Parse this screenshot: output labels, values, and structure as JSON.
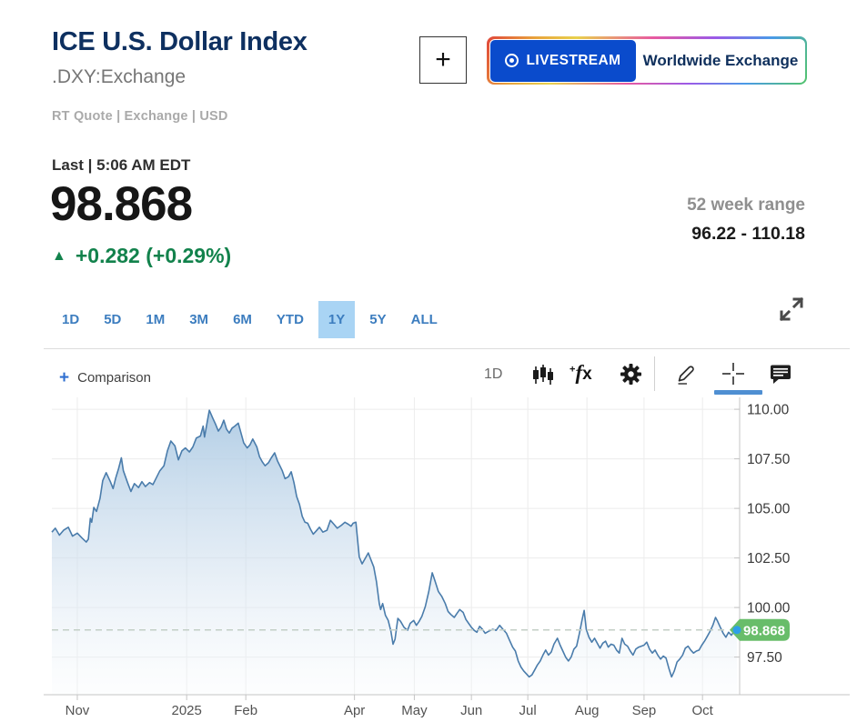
{
  "header": {
    "title": "ICE U.S. Dollar Index",
    "symbol": ".DXY:Exchange",
    "meta": "RT Quote | Exchange | USD",
    "add_button_label": "+",
    "livestream_label": "LIVESTREAM",
    "livestream_show": "Worldwide Exchange"
  },
  "quote": {
    "last_label": "Last | 5:06 AM EDT",
    "price": "98.868",
    "change_direction": "up",
    "change_arrow": "▲",
    "change_text": "+0.282 (+0.29%)",
    "range_label": "52 week range",
    "range_value": "96.22 - 110.18"
  },
  "ranges": {
    "items": [
      "1D",
      "5D",
      "1M",
      "3M",
      "6M",
      "YTD",
      "1Y",
      "5Y",
      "ALL"
    ],
    "selected": "1Y"
  },
  "chart_toolbar": {
    "comparison_label": "Comparison",
    "interval_label": "1D",
    "active_tool": "crosshair"
  },
  "colors": {
    "navy": "#0e3060",
    "green_change": "#12824c",
    "tab_text": "#3c7dbf",
    "tab_selected_bg": "#a9d4f4",
    "accent_blue": "#0a4bcc",
    "active_tool_underline": "#4f8fd2",
    "line_blue": "#4a7cab",
    "fill_top": "#aecbe4",
    "tag_green": "#68bd6a",
    "dot_blue": "#2d9fe8",
    "dashed_line": "#c3cfc6",
    "grid": "#ececec",
    "axis": "#c4c4c4"
  },
  "chart_data": {
    "type": "area",
    "title": "ICE U.S. Dollar Index, 1 year",
    "period": "1Y",
    "grid": true,
    "legend_position": "none",
    "ylim": [
      95.6,
      110.6
    ],
    "y_axis": {
      "ticks": [
        {
          "v": 110.0,
          "label": "110.00"
        },
        {
          "v": 107.5,
          "label": "107.50"
        },
        {
          "v": 105.0,
          "label": "105.00"
        },
        {
          "v": 102.5,
          "label": "102.50"
        },
        {
          "v": 100.0,
          "label": "100.00"
        },
        {
          "v": 97.5,
          "label": "97.50"
        }
      ]
    },
    "x_axis": {
      "ticks": [
        {
          "t": 0.037,
          "label": "Nov"
        },
        {
          "t": 0.196,
          "label": "2025"
        },
        {
          "t": 0.282,
          "label": "Feb"
        },
        {
          "t": 0.44,
          "label": "Apr"
        },
        {
          "t": 0.527,
          "label": "May"
        },
        {
          "t": 0.61,
          "label": "Jun"
        },
        {
          "t": 0.692,
          "label": "Jul"
        },
        {
          "t": 0.778,
          "label": "Aug"
        },
        {
          "t": 0.861,
          "label": "Sep"
        },
        {
          "t": 0.946,
          "label": "Oct"
        }
      ]
    },
    "last": {
      "value": 98.868,
      "label": "98.868"
    },
    "points": [
      [
        0.0,
        103.8
      ],
      [
        0.005,
        104.0
      ],
      [
        0.011,
        103.65
      ],
      [
        0.017,
        103.9
      ],
      [
        0.024,
        104.05
      ],
      [
        0.03,
        103.6
      ],
      [
        0.037,
        103.75
      ],
      [
        0.044,
        103.5
      ],
      [
        0.05,
        103.3
      ],
      [
        0.053,
        103.45
      ],
      [
        0.056,
        104.5
      ],
      [
        0.058,
        104.3
      ],
      [
        0.061,
        105.05
      ],
      [
        0.065,
        104.85
      ],
      [
        0.07,
        105.5
      ],
      [
        0.074,
        106.4
      ],
      [
        0.079,
        106.8
      ],
      [
        0.085,
        106.35
      ],
      [
        0.089,
        106.0
      ],
      [
        0.093,
        106.55
      ],
      [
        0.097,
        107.0
      ],
      [
        0.101,
        107.55
      ],
      [
        0.104,
        106.9
      ],
      [
        0.11,
        106.3
      ],
      [
        0.115,
        105.85
      ],
      [
        0.12,
        106.25
      ],
      [
        0.126,
        106.05
      ],
      [
        0.131,
        106.35
      ],
      [
        0.136,
        106.1
      ],
      [
        0.142,
        106.3
      ],
      [
        0.147,
        106.2
      ],
      [
        0.152,
        106.55
      ],
      [
        0.157,
        106.9
      ],
      [
        0.163,
        107.15
      ],
      [
        0.168,
        107.9
      ],
      [
        0.173,
        108.4
      ],
      [
        0.179,
        108.15
      ],
      [
        0.184,
        107.45
      ],
      [
        0.189,
        107.9
      ],
      [
        0.194,
        108.05
      ],
      [
        0.2,
        107.85
      ],
      [
        0.205,
        108.1
      ],
      [
        0.21,
        108.55
      ],
      [
        0.216,
        108.65
      ],
      [
        0.22,
        109.15
      ],
      [
        0.222,
        108.6
      ],
      [
        0.226,
        109.4
      ],
      [
        0.229,
        109.95
      ],
      [
        0.234,
        109.55
      ],
      [
        0.238,
        109.25
      ],
      [
        0.242,
        108.9
      ],
      [
        0.246,
        109.1
      ],
      [
        0.25,
        109.45
      ],
      [
        0.254,
        109.0
      ],
      [
        0.258,
        108.8
      ],
      [
        0.262,
        109.05
      ],
      [
        0.266,
        109.15
      ],
      [
        0.271,
        109.3
      ],
      [
        0.275,
        108.8
      ],
      [
        0.279,
        108.3
      ],
      [
        0.284,
        108.05
      ],
      [
        0.288,
        108.2
      ],
      [
        0.292,
        108.5
      ],
      [
        0.298,
        108.1
      ],
      [
        0.302,
        107.6
      ],
      [
        0.306,
        107.35
      ],
      [
        0.31,
        107.15
      ],
      [
        0.315,
        107.3
      ],
      [
        0.319,
        107.55
      ],
      [
        0.324,
        107.8
      ],
      [
        0.328,
        107.4
      ],
      [
        0.335,
        106.9
      ],
      [
        0.339,
        106.5
      ],
      [
        0.344,
        106.6
      ],
      [
        0.348,
        106.85
      ],
      [
        0.352,
        106.3
      ],
      [
        0.356,
        105.6
      ],
      [
        0.36,
        105.2
      ],
      [
        0.364,
        104.6
      ],
      [
        0.368,
        104.3
      ],
      [
        0.372,
        104.25
      ],
      [
        0.376,
        103.95
      ],
      [
        0.38,
        103.7
      ],
      [
        0.384,
        103.85
      ],
      [
        0.389,
        104.05
      ],
      [
        0.394,
        103.8
      ],
      [
        0.4,
        103.9
      ],
      [
        0.405,
        104.4
      ],
      [
        0.41,
        104.2
      ],
      [
        0.415,
        104.0
      ],
      [
        0.421,
        104.15
      ],
      [
        0.426,
        104.3
      ],
      [
        0.431,
        104.2
      ],
      [
        0.435,
        104.1
      ],
      [
        0.438,
        104.25
      ],
      [
        0.442,
        104.3
      ],
      [
        0.447,
        102.55
      ],
      [
        0.451,
        102.2
      ],
      [
        0.456,
        102.5
      ],
      [
        0.46,
        102.75
      ],
      [
        0.464,
        102.4
      ],
      [
        0.468,
        102.05
      ],
      [
        0.472,
        101.3
      ],
      [
        0.476,
        100.2
      ],
      [
        0.478,
        99.9
      ],
      [
        0.481,
        100.2
      ],
      [
        0.485,
        99.6
      ],
      [
        0.489,
        99.35
      ],
      [
        0.493,
        98.8
      ],
      [
        0.496,
        98.15
      ],
      [
        0.499,
        98.4
      ],
      [
        0.503,
        99.45
      ],
      [
        0.507,
        99.3
      ],
      [
        0.512,
        99.0
      ],
      [
        0.517,
        98.85
      ],
      [
        0.521,
        99.2
      ],
      [
        0.526,
        99.35
      ],
      [
        0.53,
        99.1
      ],
      [
        0.534,
        99.3
      ],
      [
        0.538,
        99.55
      ],
      [
        0.543,
        100.05
      ],
      [
        0.548,
        100.8
      ],
      [
        0.553,
        101.75
      ],
      [
        0.557,
        101.35
      ],
      [
        0.562,
        100.8
      ],
      [
        0.567,
        100.55
      ],
      [
        0.572,
        100.2
      ],
      [
        0.576,
        99.8
      ],
      [
        0.58,
        99.65
      ],
      [
        0.585,
        99.5
      ],
      [
        0.589,
        99.7
      ],
      [
        0.593,
        99.9
      ],
      [
        0.598,
        99.75
      ],
      [
        0.602,
        99.4
      ],
      [
        0.606,
        99.2
      ],
      [
        0.61,
        99.0
      ],
      [
        0.614,
        98.85
      ],
      [
        0.618,
        98.75
      ],
      [
        0.622,
        99.05
      ],
      [
        0.626,
        98.9
      ],
      [
        0.63,
        98.7
      ],
      [
        0.635,
        98.8
      ],
      [
        0.641,
        98.9
      ],
      [
        0.646,
        98.85
      ],
      [
        0.651,
        99.1
      ],
      [
        0.656,
        98.9
      ],
      [
        0.661,
        98.7
      ],
      [
        0.666,
        98.3
      ],
      [
        0.67,
        98.0
      ],
      [
        0.674,
        97.8
      ],
      [
        0.678,
        97.3
      ],
      [
        0.682,
        97.0
      ],
      [
        0.686,
        96.8
      ],
      [
        0.69,
        96.65
      ],
      [
        0.694,
        96.5
      ],
      [
        0.698,
        96.6
      ],
      [
        0.702,
        96.85
      ],
      [
        0.706,
        97.1
      ],
      [
        0.71,
        97.3
      ],
      [
        0.714,
        97.6
      ],
      [
        0.718,
        97.85
      ],
      [
        0.722,
        97.6
      ],
      [
        0.726,
        97.75
      ],
      [
        0.73,
        98.15
      ],
      [
        0.735,
        98.45
      ],
      [
        0.739,
        98.1
      ],
      [
        0.743,
        97.8
      ],
      [
        0.747,
        97.5
      ],
      [
        0.751,
        97.3
      ],
      [
        0.755,
        97.5
      ],
      [
        0.759,
        97.9
      ],
      [
        0.763,
        98.05
      ],
      [
        0.767,
        98.7
      ],
      [
        0.771,
        99.4
      ],
      [
        0.774,
        99.85
      ],
      [
        0.777,
        98.9
      ],
      [
        0.781,
        98.5
      ],
      [
        0.785,
        98.25
      ],
      [
        0.789,
        98.45
      ],
      [
        0.793,
        98.2
      ],
      [
        0.797,
        97.95
      ],
      [
        0.801,
        98.2
      ],
      [
        0.805,
        98.3
      ],
      [
        0.809,
        98.0
      ],
      [
        0.813,
        98.15
      ],
      [
        0.817,
        98.1
      ],
      [
        0.821,
        97.85
      ],
      [
        0.825,
        97.7
      ],
      [
        0.829,
        98.45
      ],
      [
        0.833,
        98.15
      ],
      [
        0.837,
        98.05
      ],
      [
        0.841,
        97.8
      ],
      [
        0.845,
        97.6
      ],
      [
        0.849,
        97.9
      ],
      [
        0.853,
        98.0
      ],
      [
        0.857,
        98.05
      ],
      [
        0.861,
        98.1
      ],
      [
        0.865,
        98.25
      ],
      [
        0.869,
        97.9
      ],
      [
        0.873,
        97.7
      ],
      [
        0.877,
        97.85
      ],
      [
        0.881,
        97.6
      ],
      [
        0.885,
        97.4
      ],
      [
        0.889,
        97.55
      ],
      [
        0.893,
        97.45
      ],
      [
        0.897,
        96.95
      ],
      [
        0.901,
        96.5
      ],
      [
        0.905,
        96.8
      ],
      [
        0.909,
        97.25
      ],
      [
        0.913,
        97.4
      ],
      [
        0.917,
        97.6
      ],
      [
        0.921,
        97.95
      ],
      [
        0.925,
        98.05
      ],
      [
        0.929,
        97.85
      ],
      [
        0.933,
        97.7
      ],
      [
        0.937,
        97.8
      ],
      [
        0.941,
        97.85
      ],
      [
        0.945,
        98.1
      ],
      [
        0.949,
        98.3
      ],
      [
        0.953,
        98.55
      ],
      [
        0.957,
        98.8
      ],
      [
        0.961,
        99.1
      ],
      [
        0.965,
        99.5
      ],
      [
        0.968,
        99.3
      ],
      [
        0.972,
        99.0
      ],
      [
        0.976,
        98.7
      ],
      [
        0.98,
        98.5
      ],
      [
        0.984,
        98.75
      ],
      [
        0.988,
        98.6
      ],
      [
        0.992,
        98.8
      ],
      [
        0.996,
        98.868
      ]
    ]
  }
}
